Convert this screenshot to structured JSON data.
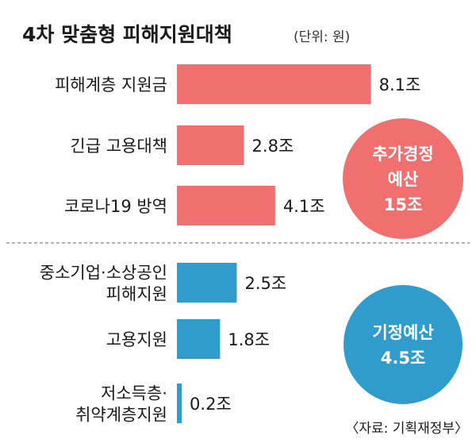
{
  "chart_data": {
    "type": "bar",
    "orientation": "horizontal",
    "title": "4차 맞춤형 피해지원대책",
    "unit_label": "(단위: 원)",
    "groups": [
      {
        "badge_lines": [
          "추가경정",
          "예산",
          "15조"
        ],
        "color": "#f07070",
        "badge_color": "#f07070",
        "bars": [
          {
            "label_lines": [
              "피해계층 지원금"
            ],
            "value": 8.1,
            "value_label": "8.1조"
          },
          {
            "label_lines": [
              "긴급 고용대책"
            ],
            "value": 2.8,
            "value_label": "2.8조"
          },
          {
            "label_lines": [
              "코로나19 방역"
            ],
            "value": 4.1,
            "value_label": "4.1조"
          }
        ]
      },
      {
        "badge_lines": [
          "기정예산",
          "4.5조"
        ],
        "color": "#2f9ccc",
        "badge_color": "#2f9ccc",
        "bars": [
          {
            "label_lines": [
              "중소기업·소상공인",
              "피해지원"
            ],
            "value": 2.5,
            "value_label": "2.5조"
          },
          {
            "label_lines": [
              "고용지원"
            ],
            "value": 1.8,
            "value_label": "1.8조"
          },
          {
            "label_lines": [
              "저소득층·",
              "취약계층지원"
            ],
            "value": 0.2,
            "value_label": "0.2조"
          }
        ]
      }
    ],
    "source": "〈자료: 기획재정부〉"
  }
}
